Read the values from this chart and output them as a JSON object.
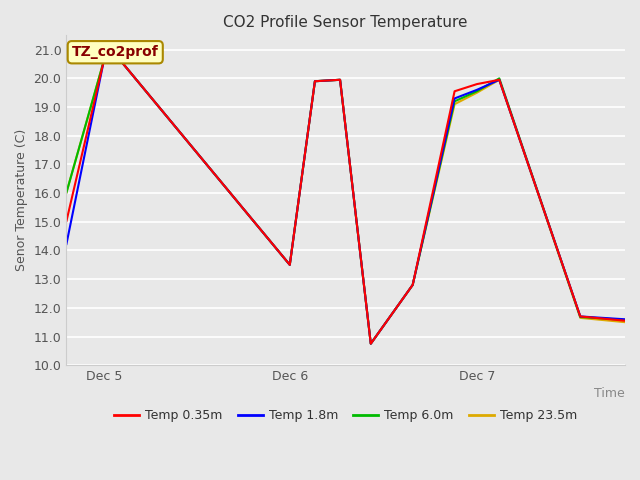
{
  "title": "CO2 Profile Sensor Temperature",
  "ylabel": "Senor Temperature (C)",
  "xlabel": "Time",
  "annotation": "TZ_co2prof",
  "ylim": [
    10.0,
    21.5
  ],
  "yticks": [
    10.0,
    11.0,
    12.0,
    13.0,
    14.0,
    15.0,
    16.0,
    17.0,
    18.0,
    19.0,
    20.0,
    21.0
  ],
  "xlim": [
    0.0,
    1.0
  ],
  "x_tick_positions": [
    0.067,
    0.4,
    0.735
  ],
  "x_tick_labels": [
    "Dec 5",
    "Dec 6",
    "Dec 7"
  ],
  "series": [
    {
      "label": "Temp 0.35m",
      "color": "#ff0000",
      "x": [
        0.0,
        0.067,
        0.1,
        0.4,
        0.445,
        0.49,
        0.545,
        0.62,
        0.695,
        0.735,
        0.775,
        0.92,
        1.0
      ],
      "y": [
        15.0,
        20.6,
        20.55,
        13.5,
        19.9,
        19.95,
        10.75,
        12.8,
        19.55,
        19.8,
        19.95,
        11.7,
        11.55
      ]
    },
    {
      "label": "Temp 1.8m",
      "color": "#0000ff",
      "x": [
        0.0,
        0.067,
        0.1,
        0.4,
        0.445,
        0.49,
        0.545,
        0.62,
        0.695,
        0.735,
        0.775,
        0.92,
        1.0
      ],
      "y": [
        14.2,
        20.6,
        20.55,
        13.5,
        19.9,
        19.95,
        10.75,
        12.8,
        19.3,
        19.6,
        19.95,
        11.7,
        11.6
      ]
    },
    {
      "label": "Temp 6.0m",
      "color": "#00bb00",
      "x": [
        0.0,
        0.067,
        0.1,
        0.4,
        0.445,
        0.49,
        0.545,
        0.62,
        0.695,
        0.735,
        0.775,
        0.92,
        1.0
      ],
      "y": [
        16.0,
        20.6,
        20.55,
        13.5,
        19.9,
        19.95,
        10.75,
        12.8,
        19.2,
        19.55,
        20.0,
        11.68,
        11.58
      ]
    },
    {
      "label": "Temp 23.5m",
      "color": "#ddaa00",
      "x": [
        0.0,
        0.067,
        0.1,
        0.4,
        0.445,
        0.49,
        0.545,
        0.62,
        0.695,
        0.735,
        0.775,
        0.92,
        1.0
      ],
      "y": [
        16.0,
        20.6,
        20.55,
        13.5,
        19.9,
        19.95,
        10.75,
        12.8,
        19.1,
        19.5,
        19.95,
        11.65,
        11.5
      ]
    }
  ],
  "fig_width": 6.4,
  "fig_height": 4.8,
  "dpi": 100,
  "bg_color": "#e8e8e8",
  "plot_bg_color": "#e8e8e8",
  "grid_color": "#ffffff",
  "spine_color": "#cccccc",
  "title_fontsize": 11,
  "label_fontsize": 9,
  "tick_fontsize": 9,
  "legend_fontsize": 9,
  "annotation_text_color": "#880000",
  "annotation_bg_color": "#ffffc0",
  "annotation_edge_color": "#aa8800"
}
